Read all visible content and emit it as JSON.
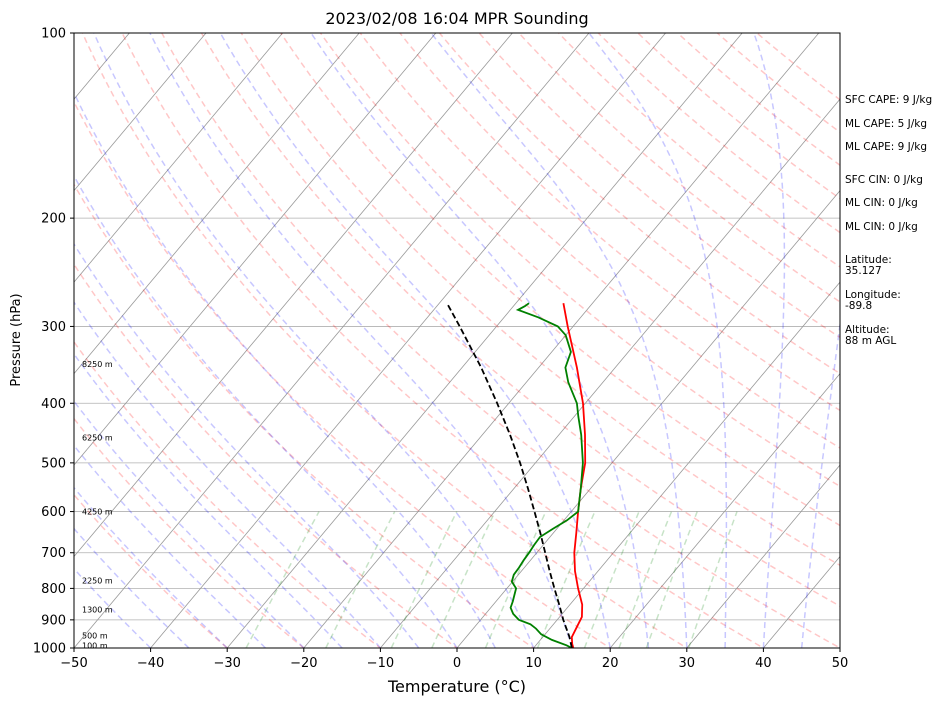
{
  "chart_data": {
    "type": "line",
    "subtype": "skew-t log-p sounding",
    "title": "2023/02/08 16:04 MPR Sounding",
    "xlabel": "Temperature (°C)",
    "ylabel": "Pressure (hPa)",
    "xlim": [
      -50,
      50
    ],
    "ylim": [
      1000,
      100
    ],
    "y_scale": "log",
    "x_ticks": [
      -50,
      -40,
      -30,
      -20,
      -10,
      0,
      10,
      20,
      30,
      40,
      50
    ],
    "x_tick_labels": [
      "−50",
      "−40",
      "−30",
      "−20",
      "−10",
      "0",
      "10",
      "20",
      "30",
      "40",
      "50"
    ],
    "y_ticks": [
      1000,
      900,
      800,
      700,
      600,
      500,
      400,
      300,
      200,
      100
    ],
    "y_tick_labels": [
      "1000",
      "900",
      "800",
      "700",
      "600",
      "500",
      "400",
      "300",
      "200",
      "100"
    ],
    "grid": true,
    "height_labels": [
      {
        "p": 990,
        "label": "100 m"
      },
      {
        "p": 955,
        "label": "500 m"
      },
      {
        "p": 866,
        "label": "1300 m"
      },
      {
        "p": 777,
        "label": "2250 m"
      },
      {
        "p": 600,
        "label": "4250 m"
      },
      {
        "p": 455,
        "label": "6250 m"
      },
      {
        "p": 345,
        "label": "8250 m"
      }
    ],
    "series": [
      {
        "role": "temperature",
        "color": "#ff0000",
        "points": [
          [
            1000,
            15.2
          ],
          [
            985,
            14.6
          ],
          [
            960,
            13.8
          ],
          [
            920,
            13.3
          ],
          [
            890,
            12.9
          ],
          [
            850,
            11.6
          ],
          [
            800,
            9.3
          ],
          [
            750,
            7.0
          ],
          [
            700,
            4.9
          ],
          [
            650,
            3.0
          ],
          [
            600,
            0.9
          ],
          [
            550,
            -1.3
          ],
          [
            500,
            -3.5
          ],
          [
            450,
            -6.6
          ],
          [
            400,
            -10.3
          ],
          [
            350,
            -15.0
          ],
          [
            300,
            -20.7
          ],
          [
            275,
            -23.8
          ]
        ]
      },
      {
        "role": "dewpoint",
        "color": "#008000",
        "points": [
          [
            1000,
            15.0
          ],
          [
            990,
            14.0
          ],
          [
            970,
            11.5
          ],
          [
            950,
            9.5
          ],
          [
            930,
            8.2
          ],
          [
            915,
            7.0
          ],
          [
            900,
            5.0
          ],
          [
            880,
            3.6
          ],
          [
            860,
            2.6
          ],
          [
            840,
            2.2
          ],
          [
            820,
            1.7
          ],
          [
            800,
            1.2
          ],
          [
            780,
            -0.1
          ],
          [
            760,
            -0.6
          ],
          [
            740,
            -0.7
          ],
          [
            720,
            -0.9
          ],
          [
            700,
            -1.0
          ],
          [
            680,
            -1.2
          ],
          [
            660,
            -1.3
          ],
          [
            640,
            -0.5
          ],
          [
            620,
            0.4
          ],
          [
            600,
            0.9
          ],
          [
            550,
            -1.3
          ],
          [
            500,
            -3.8
          ],
          [
            450,
            -7.1
          ],
          [
            420,
            -9.5
          ],
          [
            400,
            -11.1
          ],
          [
            370,
            -14.5
          ],
          [
            350,
            -16.5
          ],
          [
            330,
            -17.5
          ],
          [
            310,
            -20.0
          ],
          [
            300,
            -22.0
          ],
          [
            290,
            -25.5
          ],
          [
            282,
            -29.0
          ],
          [
            278,
            -28.5
          ],
          [
            275,
            -28.3
          ]
        ]
      },
      {
        "role": "parcel profile",
        "color": "#000000",
        "dashed": true,
        "points": [
          [
            1000,
            15.0
          ],
          [
            960,
            13.5
          ],
          [
            900,
            10.8
          ],
          [
            850,
            8.6
          ],
          [
            800,
            6.2
          ],
          [
            750,
            3.7
          ],
          [
            700,
            1.1
          ],
          [
            650,
            -1.7
          ],
          [
            600,
            -4.8
          ],
          [
            550,
            -8.2
          ],
          [
            500,
            -12.0
          ],
          [
            450,
            -16.4
          ],
          [
            400,
            -21.5
          ],
          [
            350,
            -27.5
          ],
          [
            300,
            -34.8
          ],
          [
            275,
            -39.0
          ]
        ]
      }
    ],
    "reference_lines": [
      {
        "role": "dry adiabats",
        "color": "#ff0000",
        "dashed": true
      },
      {
        "role": "moist adiabats",
        "color": "#0000ff",
        "dashed": true
      },
      {
        "role": "mixing ratio lines",
        "color": "#008000",
        "dashed": true
      },
      {
        "role": "isotherms",
        "color": "#808080"
      }
    ]
  },
  "info": {
    "sfc_cape": "SFC CAPE: 9 J/kg",
    "ml_cape_1": "ML CAPE: 5 J/kg",
    "ml_cape_2": "ML CAPE: 9 J/kg",
    "sfc_cin": "SFC CIN: 0 J/kg",
    "ml_cin_1": "ML CIN: 0 J/kg",
    "ml_cin_2": "ML CIN: 0 J/kg",
    "latitude": "Latitude:\n35.127",
    "longitude": "Longitude:\n-89.8",
    "altitude": "Altitude:\n88 m AGL"
  }
}
